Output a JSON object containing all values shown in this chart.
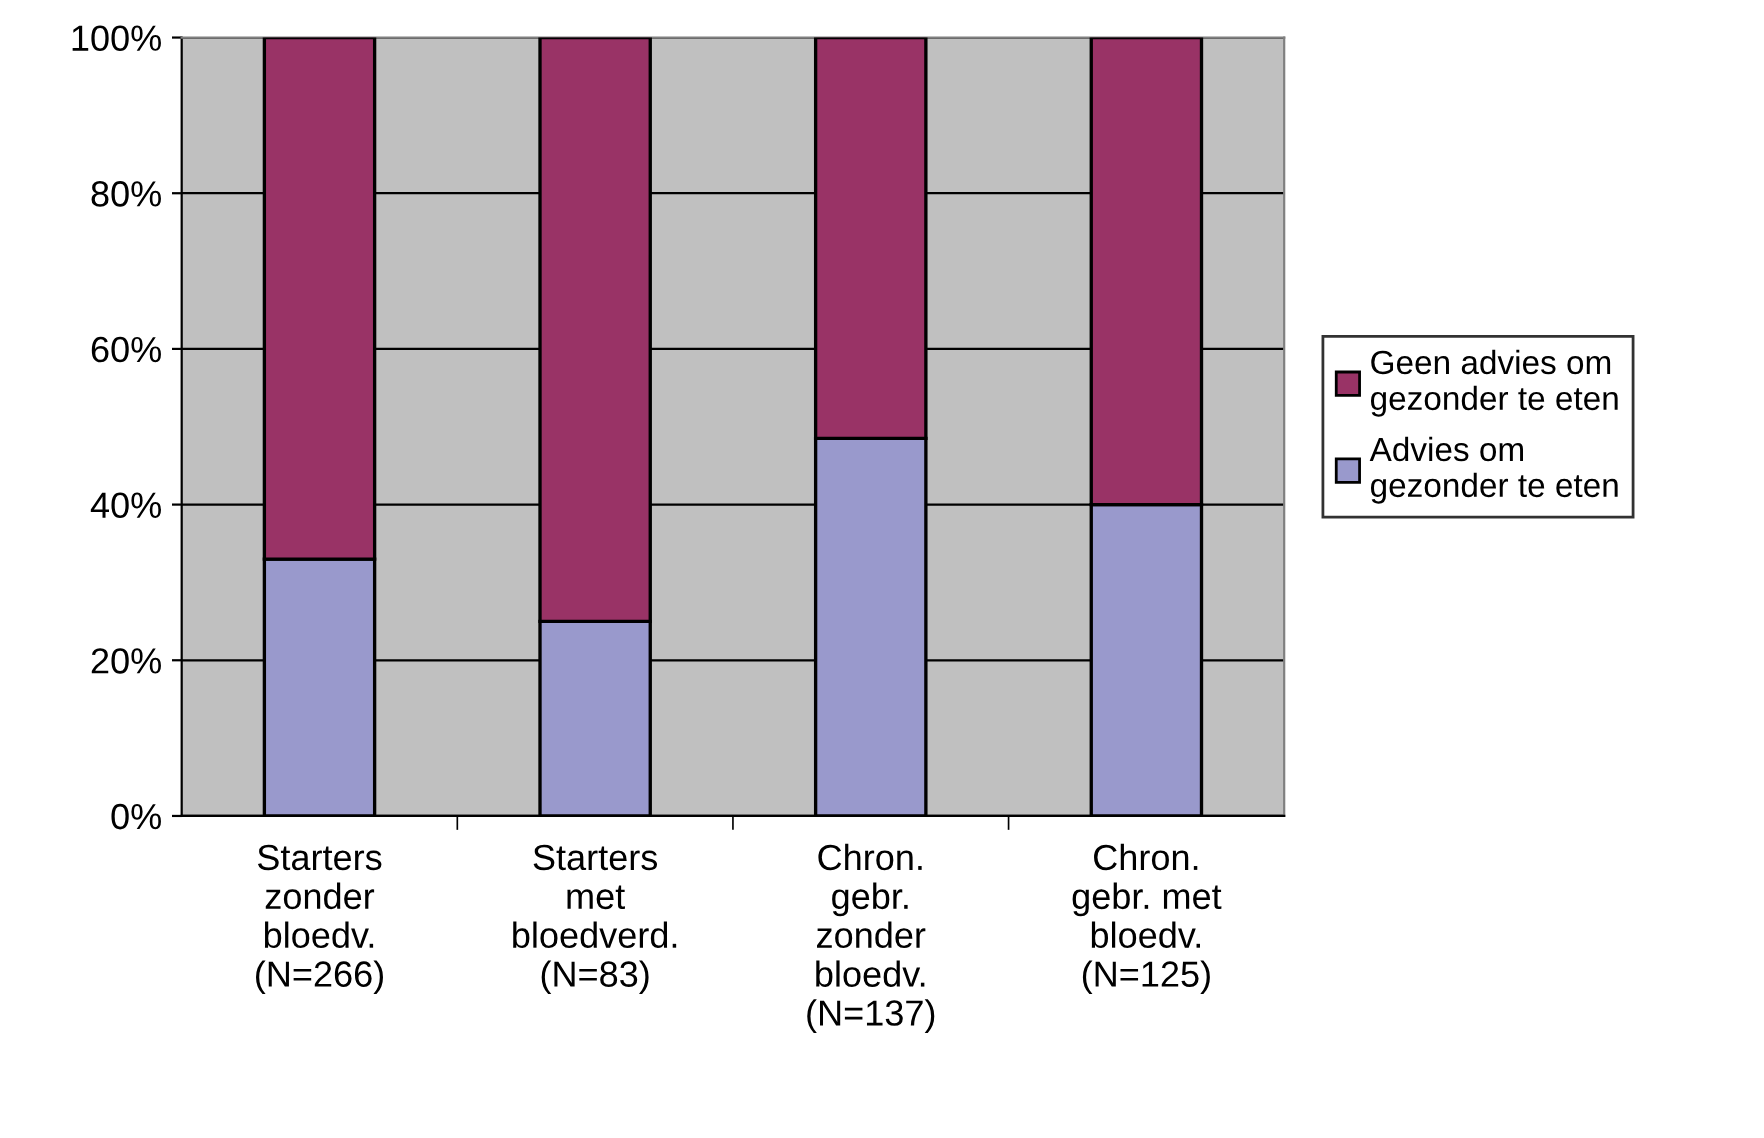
{
  "chart_data": {
    "type": "bar",
    "stacked": true,
    "categories": [
      "Starters\nzonder\nbloedv.\n(N=266)",
      "Starters\nmet\nbloedverd.\n(N=83)",
      "Chron.\ngebr.\nzonder\nbloedv.\n(N=137)",
      "Chron.\ngebr. met\nbloedv.\n(N=125)"
    ],
    "series": [
      {
        "name": "Advies om\ngezonder te eten",
        "color": "#9999cc",
        "values": [
          33,
          25,
          48.5,
          40
        ]
      },
      {
        "name": "Geen advies om\ngezonder te eten",
        "color": "#993366",
        "values": [
          67,
          75,
          51.5,
          60
        ]
      }
    ],
    "ylim": [
      0,
      100
    ],
    "yticks": [
      {
        "value": 0,
        "label": "0%"
      },
      {
        "value": 20,
        "label": "20%"
      },
      {
        "value": 40,
        "label": "40%"
      },
      {
        "value": 60,
        "label": "60%"
      },
      {
        "value": 80,
        "label": "80%"
      },
      {
        "value": 100,
        "label": "100%"
      }
    ],
    "grid": "y",
    "legend": "right"
  }
}
